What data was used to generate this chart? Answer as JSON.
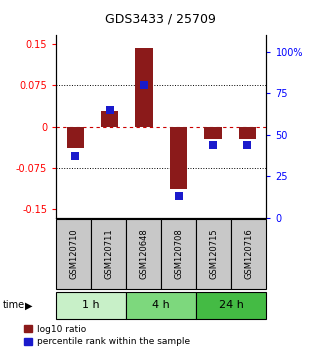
{
  "title": "GDS3433 / 25709",
  "samples": [
    "GSM120710",
    "GSM120711",
    "GSM120648",
    "GSM120708",
    "GSM120715",
    "GSM120716"
  ],
  "log10_ratio": [
    -0.038,
    0.028,
    0.143,
    -0.113,
    -0.022,
    -0.022
  ],
  "percentile_rank": [
    37,
    65,
    80,
    13,
    44,
    44
  ],
  "time_groups": [
    {
      "label": "1 h",
      "samples": [
        0,
        1
      ],
      "color": "#c8f0c8"
    },
    {
      "label": "4 h",
      "samples": [
        2,
        3
      ],
      "color": "#7dd87d"
    },
    {
      "label": "24 h",
      "samples": [
        4,
        5
      ],
      "color": "#44bb44"
    }
  ],
  "ylim_left": [
    -0.165,
    0.165
  ],
  "ylim_right": [
    0,
    110
  ],
  "yticks_left": [
    -0.15,
    -0.075,
    0,
    0.075,
    0.15
  ],
  "ytick_labels_left": [
    "-0.15",
    "-0.075",
    "0",
    "0.075",
    "0.15"
  ],
  "yticks_right": [
    0,
    25,
    50,
    75,
    100
  ],
  "ytick_labels_right": [
    "0",
    "25",
    "50",
    "75",
    "100%"
  ],
  "bar_color_red": "#8b1a1a",
  "dot_color_blue": "#1a1acc",
  "zero_line_color": "#cc0000",
  "sample_box_color": "#c8c8c8",
  "legend_red_label": "log10 ratio",
  "legend_blue_label": "percentile rank within the sample",
  "time_label": "time",
  "bar_width": 0.5,
  "dot_size": 28,
  "title_fontsize": 9,
  "tick_fontsize": 7,
  "sample_fontsize": 6,
  "time_fontsize": 8
}
